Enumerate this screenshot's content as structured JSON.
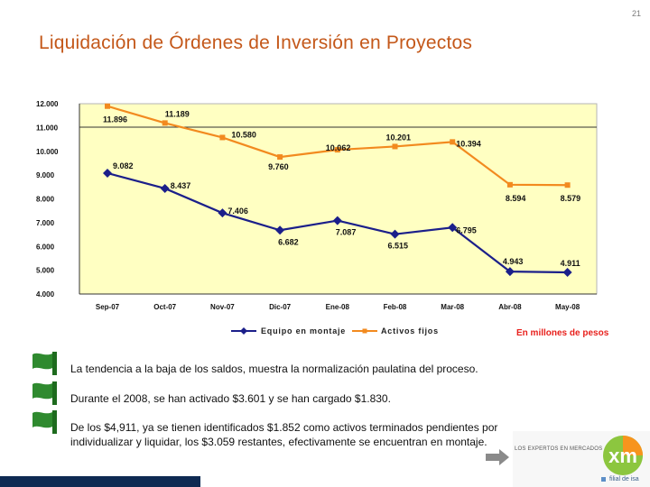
{
  "slide": {
    "page_number": "21",
    "title": "Liquidación de Órdenes de Inversión en Proyectos",
    "units_note": "En millones de pesos"
  },
  "chart_data": {
    "type": "line",
    "title": "",
    "xlabel": "",
    "ylabel": "",
    "categories": [
      "Sep-07",
      "Oct-07",
      "Nov-07",
      "Dic-07",
      "Ene-08",
      "Feb-08",
      "Mar-08",
      "Abr-08",
      "May-08"
    ],
    "y_ticks": [
      "4.000",
      "5.000",
      "6.000",
      "7.000",
      "8.000",
      "9.000",
      "10.000",
      "11.000",
      "12.000"
    ],
    "ylim": [
      4000,
      12000
    ],
    "grid": "horizontal line at 11.000",
    "legend_position": "bottom",
    "series": [
      {
        "name": "Equipo en montaje",
        "color": "#1b1f8a",
        "marker": "diamond",
        "values": [
          9082,
          8437,
          7406,
          6682,
          7087,
          6515,
          6795,
          4943,
          4911
        ],
        "labels": [
          "9.082",
          "8.437",
          "7.406",
          "6.682",
          "7.087",
          "6.515",
          "6.795",
          "4.943",
          "4.911"
        ]
      },
      {
        "name": "Activos fijos",
        "color": "#f28a1f",
        "marker": "square",
        "values": [
          11896,
          11189,
          10580,
          9760,
          10062,
          10201,
          10394,
          8594,
          8579
        ],
        "labels": [
          "11.896",
          "11.189",
          "10.580",
          "9.760",
          "10.062",
          "10.201",
          "10.394",
          "8.594",
          "8.579"
        ]
      }
    ]
  },
  "bullets": [
    "La tendencia a la baja de los saldos, muestra la normalización paulatina del proceso.",
    "Durante el 2008, se han activado $3.601 y se han cargado $1.830.",
    "De los $4,911, ya se tienen identificados $1.852 como activos terminados pendientes por individualizar y liquidar, los $3.059 restantes, efectivamente se encuentran en montaje."
  ],
  "footer": {
    "logo_tagline": "LOS EXPERTOS EN MERCADOS",
    "logo_text": "xm",
    "logo_subtext": "filial de isa",
    "colors": {
      "logo_green": "#8cc63f",
      "logo_orange": "#f7941d",
      "logo_blue": "#2e5c9a",
      "bar_navy": "#0e2a52",
      "flag_green": "#2f8a2f"
    }
  }
}
